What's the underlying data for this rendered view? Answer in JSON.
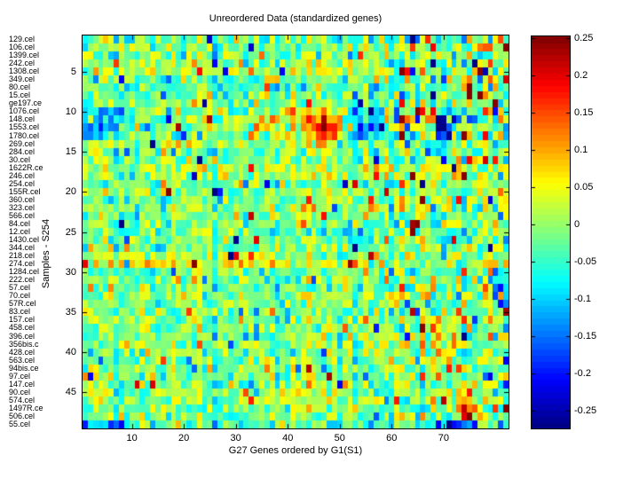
{
  "chart_data": {
    "type": "heatmap",
    "title": "Unreordered Data (standardized genes)",
    "xlabel": "G27 Genes ordered by G1(S1)",
    "ylabel": "Samples - S254",
    "n_rows": 49,
    "n_cols": 82,
    "row_labels": [
      "129.cel",
      "106.cel",
      "1399.cel",
      "242.cel",
      "1308.cel",
      "349.cel",
      "80.cel",
      "15.cel",
      "ge197.ce",
      "1076.cel",
      "148.cel",
      "1553.cel",
      "1780.cel",
      "269.cel",
      "284.cel",
      "30.cel",
      "1622R.ce",
      "246.cel",
      "254.cel",
      "155R.cel",
      "360.cel",
      "323.cel",
      "566.cel",
      "84.cel",
      "12.cel",
      "1430.cel",
      "344.cel",
      "218.cel",
      "274.cel",
      "1284.cel",
      "222.cel",
      "57.cel",
      "70.cel",
      "57R.cel",
      "83.cel",
      "157.cel",
      "458.cel",
      "396.cel",
      "356bis.c",
      "428.cel",
      "563.cel",
      "94bis.ce",
      "97.cel",
      "147.cel",
      "90.cel",
      "574.cel",
      "1497R.ce",
      "506.cel",
      "55.cel"
    ],
    "x_ticks": [
      10,
      20,
      30,
      40,
      50,
      60,
      70
    ],
    "y_ticks": [
      5,
      10,
      15,
      20,
      25,
      30,
      35,
      40,
      45
    ],
    "grid": false,
    "colormap": "jet",
    "colormap_levels": 64,
    "value_range": [
      -0.274,
      0.252
    ],
    "colorbar_position": "right",
    "colorbar_ticks": [
      "0.25",
      "0.2",
      "0.15",
      "0.1",
      "0.05",
      "0",
      "-0.05",
      "-0.1",
      "-0.15",
      "-0.2",
      "-0.25"
    ],
    "colorbar_tick_values": [
      0.25,
      0.2,
      0.15,
      0.1,
      0.05,
      0,
      -0.05,
      -0.1,
      -0.15,
      -0.2,
      -0.25
    ],
    "border_color": "#000000",
    "background_color": "#ffffff",
    "texture": {
      "seed": 20,
      "base_mean": -0.012,
      "noise_sd": 0.043,
      "outlier_prob": 0.05,
      "col_streak_sd": 0.013,
      "row_streak_sd": 0.008,
      "high_var_col_from": 59,
      "high_var_col_mult": 1.45,
      "high_var_rows": [
        10,
        13
      ],
      "high_var_row_mult": 1.4,
      "row_bias": {
        "4": 0.01,
        "5": 0.01,
        "7": -0.008,
        "14": 0.012,
        "17": 0.01,
        "18": 0.012,
        "22": 0.008,
        "25": -0.01,
        "26": -0.008,
        "29": 0.015,
        "31": -0.012,
        "32": -0.01,
        "33": 0.008,
        "37": 0.01,
        "42": 0.008,
        "46": 0.01,
        "49": -0.015
      },
      "col_bias": {
        "9": -0.012,
        "16": -0.015,
        "23": 0.008,
        "26": -0.022,
        "33": -0.015,
        "34": -0.02,
        "44": 0.012,
        "50": -0.015,
        "57": -0.012,
        "62": 0.015,
        "70": -0.012,
        "74": 0.012,
        "78": 0.012
      },
      "patches": [
        [
          10,
          13,
          1,
          9,
          -0.085
        ],
        [
          10,
          13,
          24,
          37,
          0.035
        ],
        [
          10,
          13,
          38,
          50,
          0.06
        ],
        [
          11,
          13,
          44,
          49,
          0.07
        ],
        [
          9,
          14,
          52,
          53,
          -0.07
        ],
        [
          10,
          13,
          54,
          58,
          -0.1
        ],
        [
          10,
          13,
          69,
          72,
          -0.17
        ],
        [
          9,
          13,
          62,
          62,
          0.16
        ],
        [
          1,
          1,
          57,
          60,
          -0.09
        ],
        [
          1,
          1,
          63,
          65,
          -0.08
        ],
        [
          49,
          49,
          1,
          8,
          -0.11
        ],
        [
          49,
          49,
          68,
          76,
          -0.09
        ],
        [
          25,
          26,
          50,
          56,
          -0.06
        ],
        [
          28,
          29,
          1,
          40,
          0.03
        ],
        [
          36,
          40,
          66,
          73,
          0.05
        ],
        [
          44,
          47,
          73,
          76,
          0.055
        ],
        [
          31,
          34,
          80,
          82,
          -0.1
        ],
        [
          17,
          18,
          54,
          60,
          0.055
        ],
        [
          2,
          2,
          76,
          79,
          0.08
        ],
        [
          14,
          14,
          1,
          50,
          0.02
        ],
        [
          6,
          8,
          74,
          75,
          0.1
        ]
      ],
      "spots": [
        [
          12,
          47,
          0.16
        ],
        [
          13,
          47,
          0.12
        ],
        [
          11,
          48,
          0.1
        ],
        [
          9,
          44,
          0.12
        ],
        [
          10,
          41,
          0.1
        ],
        [
          12,
          43,
          0.12
        ],
        [
          2,
          68,
          0.2
        ],
        [
          2,
          82,
          0.2
        ],
        [
          1,
          81,
          0.12
        ],
        [
          8,
          77,
          0.3
        ],
        [
          7,
          75,
          0.18
        ],
        [
          8,
          75,
          0.12
        ],
        [
          4,
          80,
          0.12
        ],
        [
          18,
          74,
          0.3
        ],
        [
          20,
          17,
          0.2
        ],
        [
          5,
          23,
          0.18
        ],
        [
          4,
          7,
          0.16
        ],
        [
          37,
          66,
          0.32
        ],
        [
          43,
          66,
          0.22
        ],
        [
          35,
          1,
          0.18
        ],
        [
          42,
          73,
          0.2
        ],
        [
          42,
          71,
          0.12
        ],
        [
          46,
          80,
          0.22
        ],
        [
          47,
          80,
          0.26
        ],
        [
          45,
          75,
          0.14
        ],
        [
          48,
          75,
          0.16
        ],
        [
          40,
          12,
          -0.18
        ],
        [
          44,
          50,
          -0.16
        ],
        [
          22,
          68,
          -0.18
        ],
        [
          33,
          43,
          0.16
        ],
        [
          33,
          50,
          0.12
        ],
        [
          29,
          53,
          0.15
        ],
        [
          20,
          1,
          0.14
        ],
        [
          37,
          23,
          0.16
        ],
        [
          49,
          71,
          -0.12
        ],
        [
          24,
          64,
          0.18
        ],
        [
          22,
          45,
          0.12
        ],
        [
          21,
          44,
          0.1
        ],
        [
          38,
          52,
          0.14
        ],
        [
          36,
          55,
          0.12
        ],
        [
          43,
          55,
          -0.15
        ],
        [
          44,
          31,
          -0.12
        ],
        [
          31,
          82,
          -0.15
        ],
        [
          34,
          82,
          -0.12
        ],
        [
          16,
          74,
          0.15
        ],
        [
          18,
          57,
          0.12
        ],
        [
          26,
          62,
          0.12
        ],
        [
          29,
          66,
          -0.14
        ],
        [
          35,
          34,
          -0.12
        ],
        [
          5,
          62,
          0.14
        ],
        [
          5,
          66,
          0.12
        ],
        [
          23,
          30,
          0.1
        ],
        [
          27,
          9,
          0.12
        ],
        [
          17,
          24,
          0.12
        ],
        [
          19,
          62,
          0.13
        ],
        [
          13,
          20,
          -0.12
        ],
        [
          41,
          4,
          -0.1
        ],
        [
          3,
          52,
          -0.12
        ],
        [
          7,
          57,
          -0.14
        ],
        [
          8,
          56,
          -0.12
        ],
        [
          47,
          74,
          0.2
        ],
        [
          48,
          74,
          0.14
        ],
        [
          1,
          64,
          -0.12
        ]
      ]
    }
  }
}
